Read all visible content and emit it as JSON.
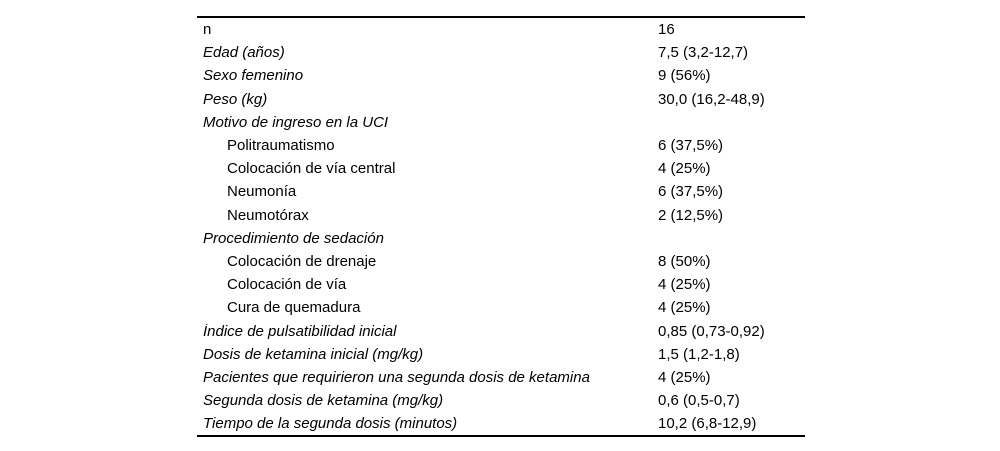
{
  "page": {
    "background": "#ffffff"
  },
  "table": {
    "rule_color": "#000000",
    "text_color": "#000000",
    "rows": [
      {
        "label": "n",
        "value": "16",
        "italic": false,
        "indent": false
      },
      {
        "label": "Edad (años)",
        "value": "7,5 (3,2-12,7)",
        "italic": true,
        "indent": false
      },
      {
        "label": "Sexo femenino",
        "value": "9 (56%)",
        "italic": true,
        "indent": false
      },
      {
        "label": "Peso (kg)",
        "value": "30,0 (16,2-48,9)",
        "italic": true,
        "indent": false
      },
      {
        "label": "Motivo de ingreso en la UCI",
        "value": "",
        "italic": true,
        "indent": false
      },
      {
        "label": "Politraumatismo",
        "value": "6 (37,5%)",
        "italic": false,
        "indent": true
      },
      {
        "label": "Colocación de vía central",
        "value": "4 (25%)",
        "italic": false,
        "indent": true
      },
      {
        "label": "Neumonía",
        "value": "6 (37,5%)",
        "italic": false,
        "indent": true
      },
      {
        "label": "Neumotórax",
        "value": "2 (12,5%)",
        "italic": false,
        "indent": true
      },
      {
        "label": "Procedimiento de sedación",
        "value": "",
        "italic": true,
        "indent": false
      },
      {
        "label": "Colocación de drenaje",
        "value": "8 (50%)",
        "italic": false,
        "indent": true
      },
      {
        "label": "Colocación de vía",
        "value": "4 (25%)",
        "italic": false,
        "indent": true
      },
      {
        "label": "Cura de quemadura",
        "value": "4 (25%)",
        "italic": false,
        "indent": true
      },
      {
        "label": "Índice de pulsatibilidad inicial",
        "value": "0,85 (0,73-0,92)",
        "italic": true,
        "indent": false
      },
      {
        "label": "Dosis de ketamina inicial (mg/kg)",
        "value": "1,5 (1,2-1,8)",
        "italic": true,
        "indent": false
      },
      {
        "label": "Pacientes que requirieron una segunda dosis de ketamina",
        "value": "4 (25%)",
        "italic": true,
        "indent": false
      },
      {
        "label": "Segunda dosis de ketamina (mg/kg)",
        "value": "0,6 (0,5-0,7)",
        "italic": true,
        "indent": false
      },
      {
        "label": "Tiempo de la segunda dosis (minutos)",
        "value": "10,2 (6,8-12,9)",
        "italic": true,
        "indent": false
      }
    ]
  }
}
